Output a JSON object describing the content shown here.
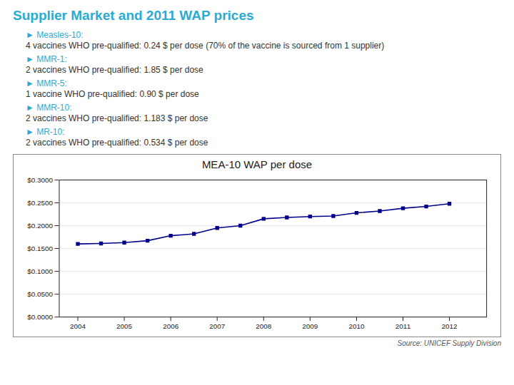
{
  "chart_data": {
    "type": "line",
    "title": "Supplier Market and 2011 WAP prices",
    "subtitle": "MEA-10 WAP per dose",
    "annotations": [
      "► Measles-10:",
      "4 vaccines WHO pre-qualified: 0.24 $ per dose (70% of the vaccine is sourced from 1 supplier)",
      "► MMR-1:",
      "2 vaccines WHO pre-qualified: 1.85 $ per dose",
      "► MMR-5:",
      "1 vaccine WHO pre-qualified: 0.90 $ per dose",
      "► MMR-10:",
      "2 vaccines WHO pre-qualified: 1.183 $ per dose",
      "► MR-10:",
      "2 vaccines WHO pre-qualified: 0.534 $ per dose"
    ],
    "caption": "Source: UNICEF Supply Division",
    "x": [
      2004,
      2004.5,
      2005,
      2005.5,
      2006,
      2006.5,
      2007,
      2007.5,
      2008,
      2008.5,
      2009,
      2009.5,
      2010,
      2010.5,
      2011,
      2011.5,
      2012
    ],
    "values": [
      0.16,
      0.161,
      0.163,
      0.167,
      0.178,
      0.182,
      0.195,
      0.2,
      0.215,
      0.218,
      0.22,
      0.221,
      0.228,
      0.232,
      0.238,
      0.242,
      0.248
    ],
    "color": "#00008B",
    "marker": "square",
    "xlim": [
      2003.6,
      2012.8
    ],
    "xticks": [
      2004,
      2005,
      2006,
      2007,
      2008,
      2009,
      2010,
      2011,
      2012
    ],
    "ylim": [
      0.0,
      0.3
    ],
    "yticks": [
      {
        "value": 0.0,
        "label": "$0.0000"
      },
      {
        "value": 0.05,
        "label": "$0.0500"
      },
      {
        "value": 0.1,
        "label": "$0.1000"
      },
      {
        "value": 0.15,
        "label": "$0.1500"
      },
      {
        "value": 0.2,
        "label": "$0.2000"
      },
      {
        "value": 0.25,
        "label": "$0.2500"
      },
      {
        "value": 0.3,
        "label": "$0.3000"
      }
    ],
    "grid": "y"
  }
}
